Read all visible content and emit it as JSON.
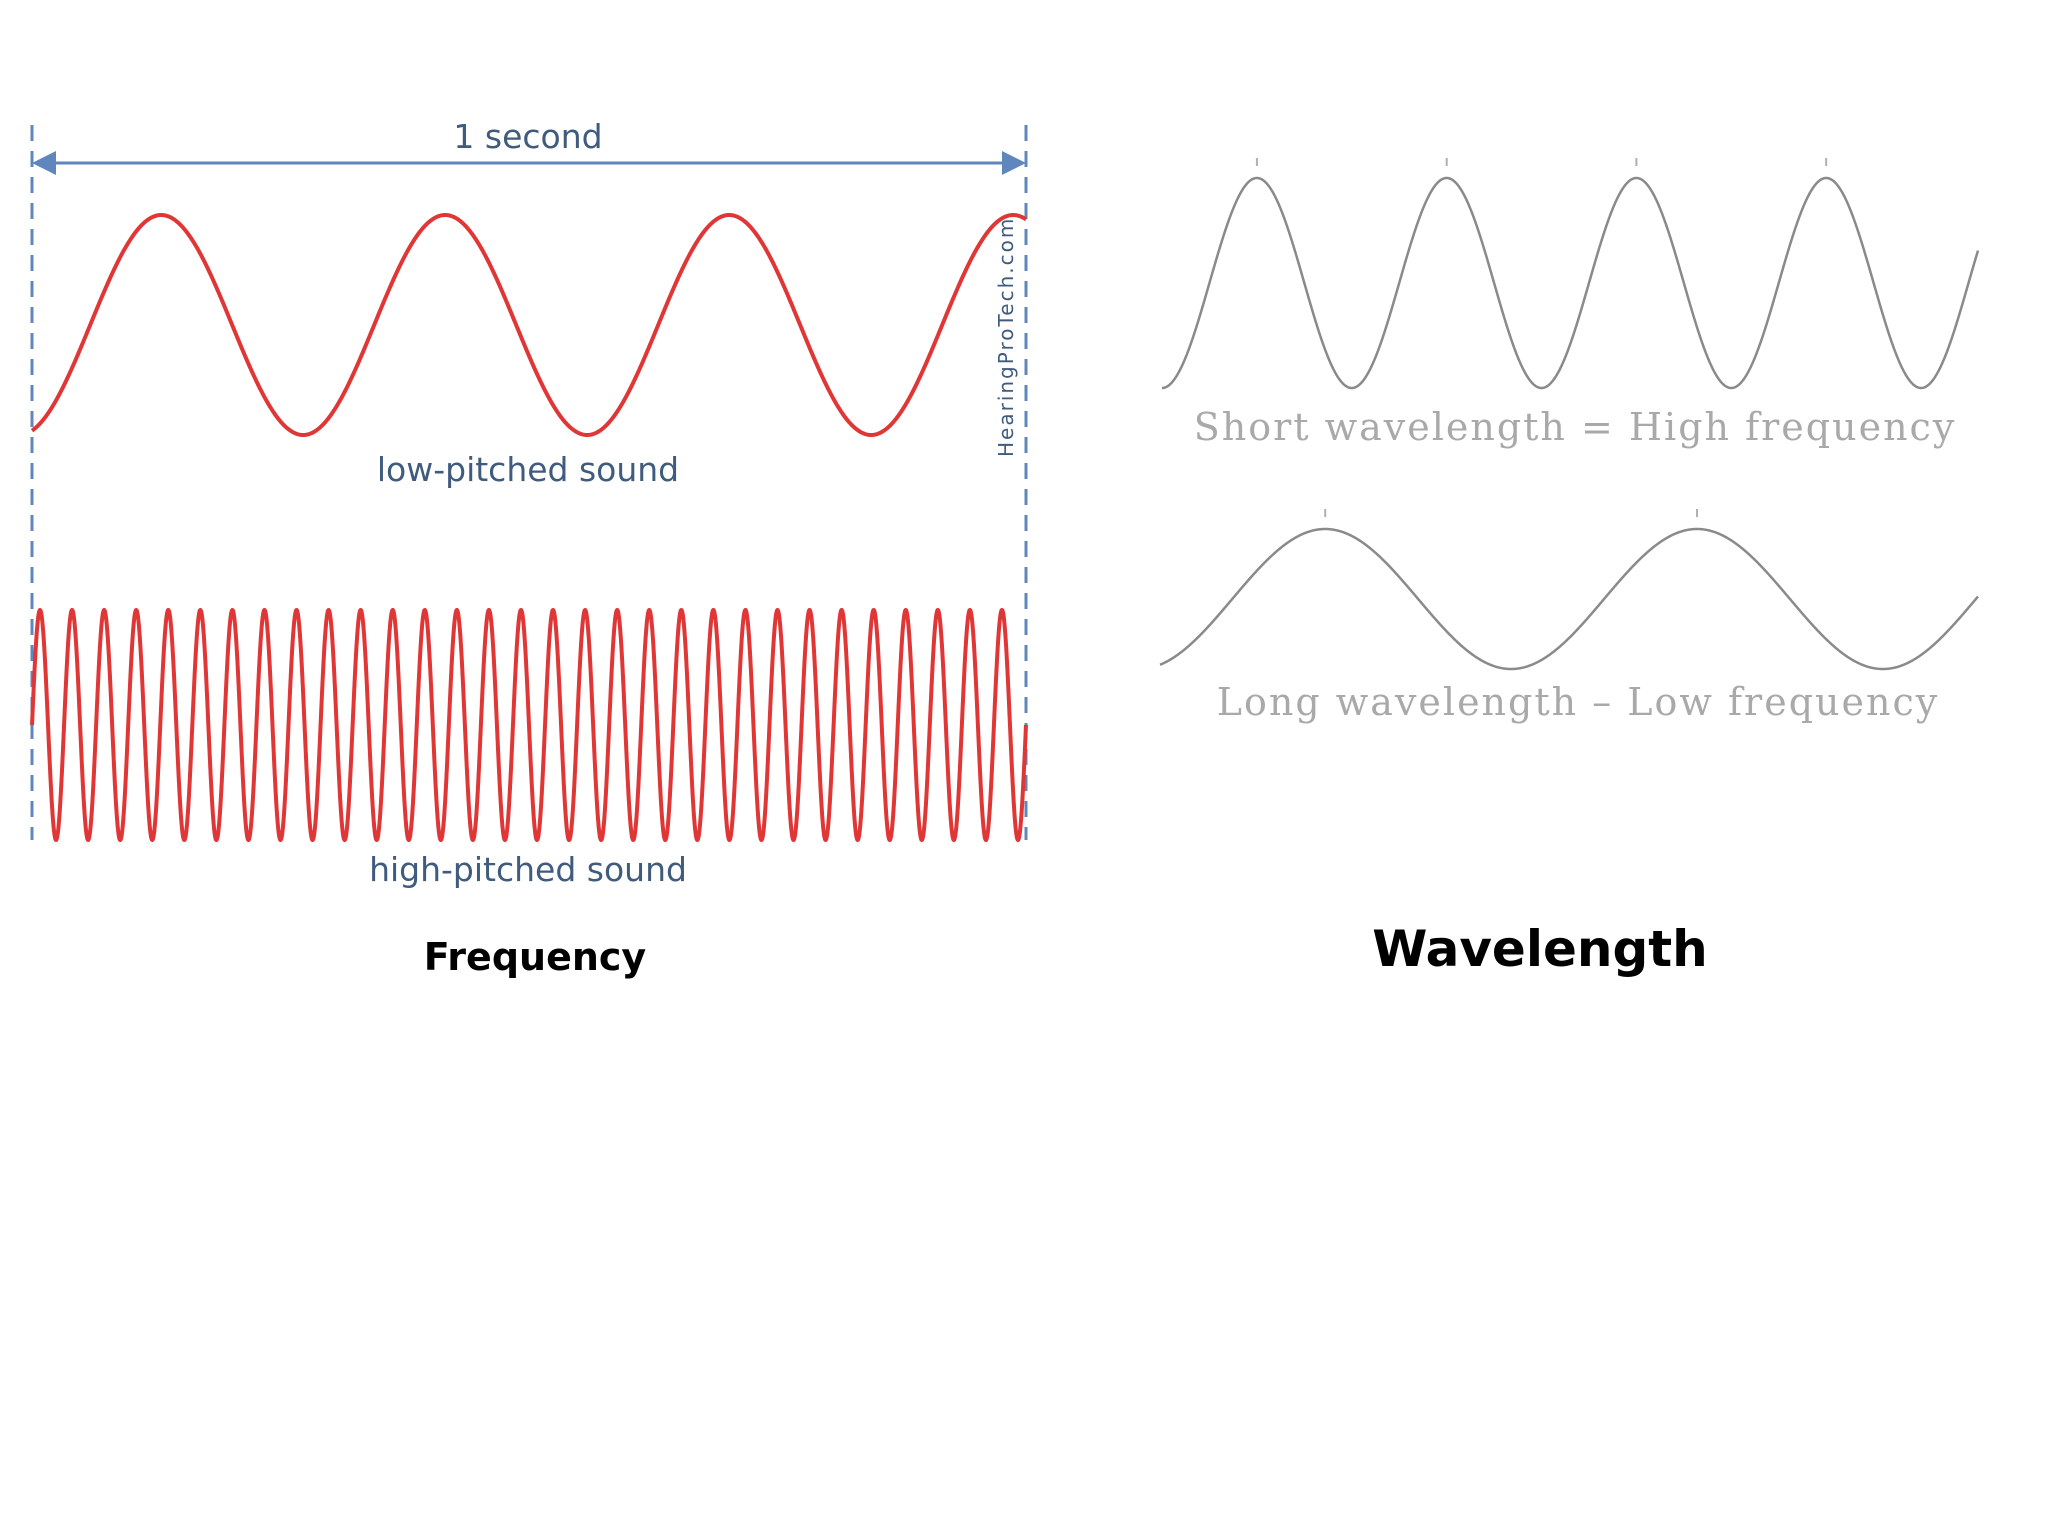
{
  "frequency_figure": {
    "span_label": "1 second",
    "low_label": "low-pitched sound",
    "high_label": "high-pitched sound",
    "credit": "HearingProTech.com",
    "wave_color": "#e03636",
    "guide_color": "#5f86bd",
    "low_cycles": 3.5,
    "high_cycles": 31
  },
  "wavelength_figure": {
    "short_label": "Short wavelength = High frequency",
    "long_label": "Long wavelength – Low frequency",
    "wave_color": "#8a8a8a",
    "short_cycles": 4.3,
    "long_cycles": 2.2
  },
  "captions": {
    "frequency": "Frequency",
    "wavelength": "Wavelength"
  }
}
